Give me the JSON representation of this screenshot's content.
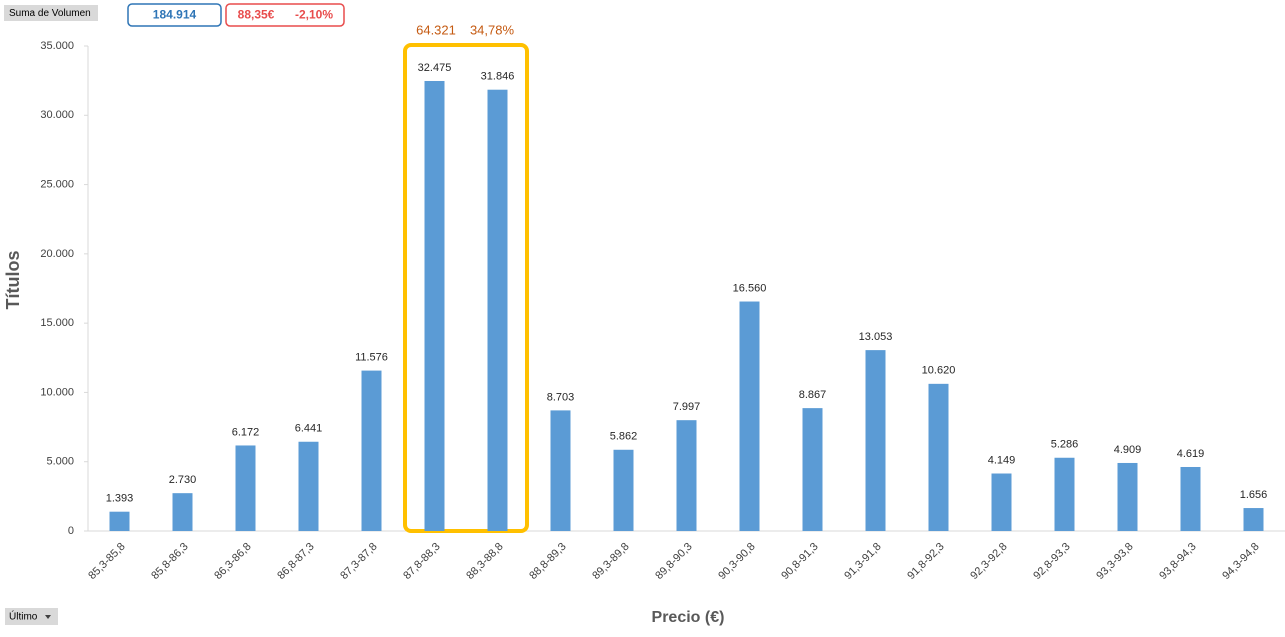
{
  "chart_data": {
    "type": "bar",
    "field_button": "Suma de Volumen",
    "total": "184.914",
    "price": "88,35€",
    "change": "-2,10%",
    "highlight": {
      "sum": "64.321",
      "share": "34,78%"
    },
    "filter_button": "Último",
    "x_label": "Precio (€)",
    "y_label": "Títulos",
    "categories": [
      "85,3-85,8",
      "85,8-86,3",
      "86,3-86,8",
      "86,8-87,3",
      "87,3-87,8",
      "87,8-88,3",
      "88,3-88,8",
      "88,8-89,3",
      "89,3-89,8",
      "89,8-90,3",
      "90,3-90,8",
      "90,8-91,3",
      "91,3-91,8",
      "91,8-92,3",
      "92,3-92,8",
      "92,8-93,3",
      "93,3-93,8",
      "93,8-94,3",
      "94,3-94,8"
    ],
    "values": [
      1393,
      2730,
      6172,
      6441,
      11576,
      32475,
      31846,
      8703,
      5862,
      7997,
      16560,
      8867,
      13053,
      10620,
      4149,
      5286,
      4909,
      4619,
      1656
    ],
    "value_labels": [
      "1.393",
      "2.730",
      "6.172",
      "6.441",
      "11.576",
      "32.475",
      "31.846",
      "8.703",
      "5.862",
      "7.997",
      "16.560",
      "8.867",
      "13.053",
      "10.620",
      "4.149",
      "5.286",
      "4.909",
      "4.619",
      "1.656"
    ],
    "color": "#5b9bd5",
    "ylim": [
      0,
      35000
    ],
    "yticks": [
      0,
      {
        "value": 5000,
        "label": "5.000"
      },
      {
        "value": 10000,
        "label": "10.000"
      },
      {
        "value": 15000,
        "label": "15.000"
      },
      {
        "value": 20000,
        "label": "20.000"
      },
      {
        "value": 25000,
        "label": "25.000"
      },
      {
        "value": 30000,
        "label": "30.000"
      },
      {
        "value": 35000,
        "label": "35.000"
      }
    ],
    "grid": false
  }
}
